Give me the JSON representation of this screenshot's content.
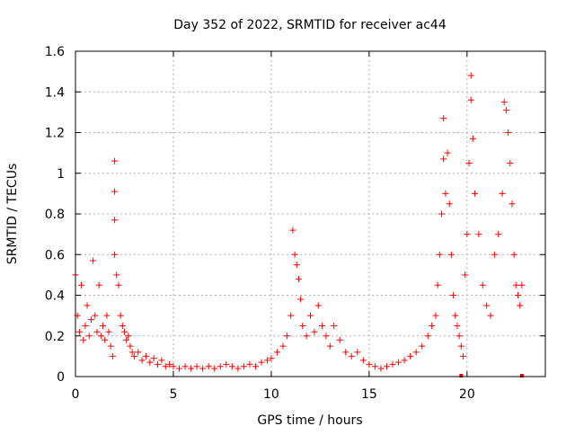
{
  "chart_data": {
    "type": "scatter",
    "title": "Day 352 of 2022, SRMTID for receiver ac44",
    "xlabel": "GPS time / hours",
    "ylabel": "SRMTID / TECUs",
    "xlim": [
      0,
      24
    ],
    "ylim": [
      0,
      1.6
    ],
    "x_ticks": [
      0,
      5,
      10,
      15,
      20
    ],
    "x_tick_labels": [
      "0",
      "5",
      "10",
      "15",
      "20"
    ],
    "y_ticks": [
      0,
      0.2,
      0.4,
      0.6,
      0.8,
      1.0,
      1.2,
      1.4,
      1.6
    ],
    "y_tick_labels": [
      "0",
      "0.2",
      "0.4",
      "0.6",
      "0.8",
      "1",
      "1.2",
      "1.4",
      "1.6"
    ],
    "grid": true,
    "marker": "+",
    "color": "#ff0000",
    "series": [
      {
        "name": "SRMTID",
        "x": [
          0.0,
          0.1,
          0.2,
          0.3,
          0.4,
          0.5,
          0.6,
          0.7,
          0.8,
          0.9,
          1.0,
          1.1,
          1.2,
          1.3,
          1.4,
          1.5,
          1.6,
          1.7,
          1.8,
          1.9,
          2.0,
          2.0,
          2.0,
          2.0,
          2.1,
          2.2,
          2.3,
          2.4,
          2.5,
          2.6,
          2.7,
          2.8,
          2.9,
          3.0,
          3.2,
          3.4,
          3.6,
          3.8,
          4.0,
          4.2,
          4.4,
          4.6,
          4.8,
          5.0,
          5.3,
          5.6,
          5.9,
          6.2,
          6.5,
          6.8,
          7.1,
          7.4,
          7.7,
          8.0,
          8.3,
          8.6,
          8.9,
          9.2,
          9.5,
          9.8,
          10.0,
          10.3,
          10.6,
          10.8,
          11.0,
          11.1,
          11.2,
          11.3,
          11.4,
          11.5,
          11.6,
          11.8,
          12.0,
          12.2,
          12.4,
          12.6,
          12.8,
          13.0,
          13.2,
          13.5,
          13.8,
          14.1,
          14.4,
          14.7,
          15.0,
          15.3,
          15.6,
          15.9,
          16.2,
          16.5,
          16.8,
          17.1,
          17.4,
          17.7,
          18.0,
          18.2,
          18.4,
          18.5,
          18.6,
          18.7,
          18.8,
          18.8,
          18.9,
          19.0,
          19.1,
          19.2,
          19.3,
          19.4,
          19.5,
          19.6,
          19.7,
          19.8,
          19.9,
          20.0,
          20.1,
          20.2,
          20.2,
          20.3,
          20.4,
          20.6,
          20.8,
          21.0,
          21.2,
          21.4,
          21.6,
          21.8,
          21.9,
          22.0,
          22.1,
          22.2,
          22.3,
          22.4,
          22.5,
          22.6,
          22.7,
          22.8
        ],
        "y": [
          0.5,
          0.3,
          0.22,
          0.45,
          0.18,
          0.25,
          0.35,
          0.2,
          0.28,
          0.57,
          0.3,
          0.22,
          0.45,
          0.2,
          0.25,
          0.18,
          0.3,
          0.22,
          0.15,
          0.1,
          1.06,
          0.91,
          0.77,
          0.6,
          0.5,
          0.45,
          0.3,
          0.25,
          0.22,
          0.18,
          0.2,
          0.15,
          0.12,
          0.1,
          0.12,
          0.08,
          0.1,
          0.07,
          0.09,
          0.06,
          0.08,
          0.05,
          0.06,
          0.05,
          0.04,
          0.05,
          0.04,
          0.05,
          0.04,
          0.05,
          0.04,
          0.05,
          0.06,
          0.05,
          0.04,
          0.05,
          0.06,
          0.05,
          0.07,
          0.08,
          0.09,
          0.12,
          0.15,
          0.2,
          0.3,
          0.72,
          0.6,
          0.55,
          0.48,
          0.38,
          0.25,
          0.2,
          0.3,
          0.22,
          0.35,
          0.25,
          0.2,
          0.15,
          0.25,
          0.18,
          0.12,
          0.1,
          0.12,
          0.08,
          0.06,
          0.05,
          0.04,
          0.05,
          0.06,
          0.07,
          0.08,
          0.1,
          0.12,
          0.15,
          0.2,
          0.25,
          0.3,
          0.45,
          0.6,
          0.8,
          1.27,
          1.07,
          0.9,
          1.1,
          0.85,
          0.6,
          0.4,
          0.3,
          0.25,
          0.2,
          0.15,
          0.1,
          0.5,
          0.7,
          1.05,
          1.48,
          1.36,
          1.17,
          0.9,
          0.7,
          0.45,
          0.35,
          0.3,
          0.6,
          0.7,
          0.9,
          1.35,
          1.31,
          1.2,
          1.05,
          0.85,
          0.6,
          0.45,
          0.4,
          0.35,
          0.45
        ]
      }
    ],
    "outliers_at_zero_x": [
      19.7,
      22.8
    ]
  }
}
